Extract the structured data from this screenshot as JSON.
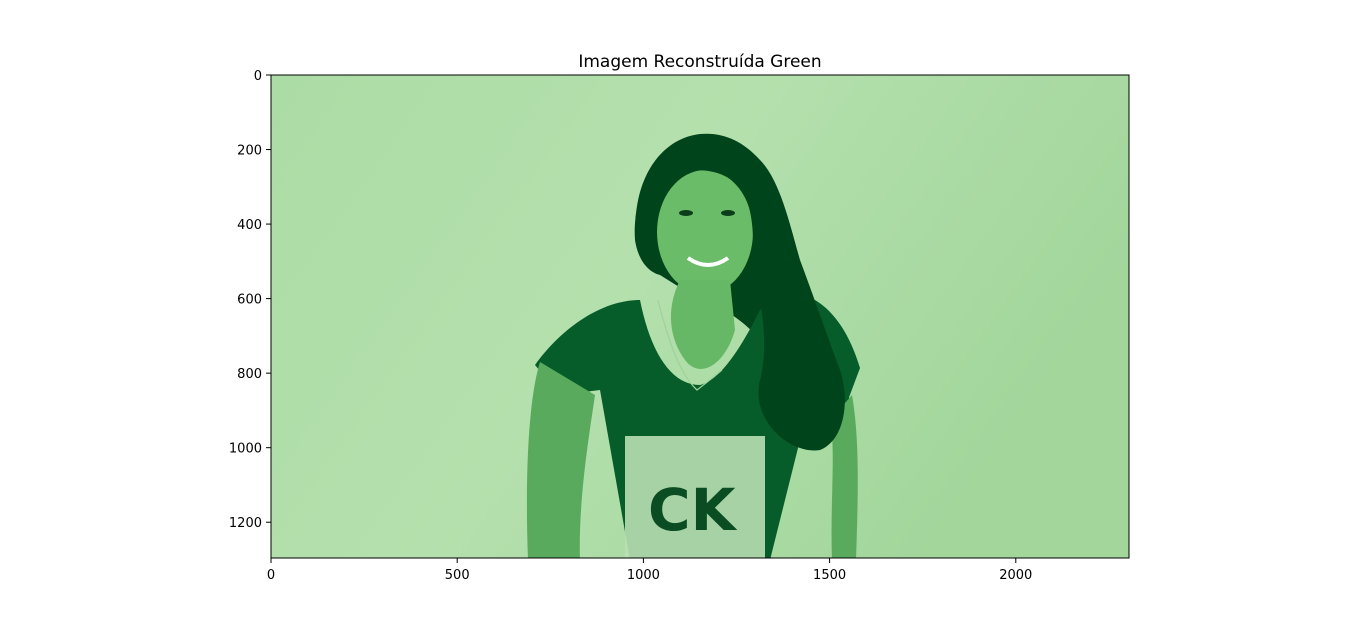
{
  "chart_data": {
    "type": "image",
    "title": "Imagem Reconstruída Green",
    "colormap": "Greens (grayscale channel rendered in green)",
    "colors": {
      "background_light": "#b4e0ad",
      "background_mid": "#a6d89f",
      "dark": "#075a28",
      "darkest": "#00441b"
    },
    "image_extent": {
      "x": [
        0,
        2304
      ],
      "y": [
        0,
        1296
      ]
    },
    "xlim": [
      0,
      2304
    ],
    "ylim": [
      1296,
      0
    ],
    "x_ticks": [
      0,
      500,
      1000,
      1500,
      2000
    ],
    "y_ticks": [
      0,
      200,
      400,
      600,
      800,
      1000,
      1200
    ],
    "x_tick_labels": [
      "0",
      "500",
      "1000",
      "1500",
      "2000"
    ],
    "y_tick_labels": [
      "0",
      "200",
      "400",
      "600",
      "800",
      "1000",
      "1200"
    ],
    "xlabel": "",
    "ylabel": "",
    "grid": false,
    "content": "portrait of a smiling woman with long dark wavy hair wearing a dark t-shirt with a printed graphic, plain light background"
  }
}
